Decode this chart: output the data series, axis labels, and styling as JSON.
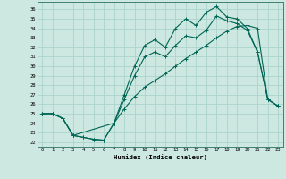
{
  "xlabel": "Humidex (Indice chaleur)",
  "bg_color": "#cce8e0",
  "grid_color": "#aad4cc",
  "line_color": "#006655",
  "xlim": [
    -0.5,
    23.5
  ],
  "ylim": [
    21.5,
    36.8
  ],
  "yticks": [
    22,
    23,
    24,
    25,
    26,
    27,
    28,
    29,
    30,
    31,
    32,
    33,
    34,
    35,
    36
  ],
  "xticks": [
    0,
    1,
    2,
    3,
    4,
    5,
    6,
    7,
    8,
    9,
    10,
    11,
    12,
    13,
    14,
    15,
    16,
    17,
    18,
    19,
    20,
    21,
    22,
    23
  ],
  "line1_x": [
    0,
    1,
    2,
    3,
    4,
    5,
    6,
    7,
    8,
    9,
    10,
    11,
    12,
    13,
    14,
    15,
    16,
    17,
    18,
    19,
    20,
    21,
    22,
    23
  ],
  "line1_y": [
    25.0,
    25.0,
    24.5,
    22.7,
    22.5,
    22.3,
    22.2,
    24.0,
    27.0,
    30.0,
    32.2,
    32.8,
    32.0,
    34.0,
    35.0,
    34.3,
    35.7,
    36.3,
    35.2,
    35.0,
    34.0,
    31.5,
    26.5,
    25.8
  ],
  "line2_x": [
    0,
    1,
    2,
    3,
    4,
    5,
    6,
    7,
    8,
    9,
    10,
    11,
    12,
    13,
    14,
    15,
    16,
    17,
    18,
    19,
    20,
    21,
    22,
    23
  ],
  "line2_y": [
    25.0,
    25.0,
    24.5,
    22.7,
    22.5,
    22.3,
    22.2,
    24.0,
    25.5,
    26.8,
    27.8,
    28.5,
    29.2,
    30.0,
    30.8,
    31.5,
    32.2,
    33.0,
    33.7,
    34.2,
    34.3,
    34.0,
    26.5,
    25.8
  ],
  "line3_x": [
    0,
    1,
    2,
    3,
    7,
    8,
    9,
    10,
    11,
    12,
    13,
    14,
    15,
    16,
    17,
    18,
    19,
    20,
    21,
    22,
    23
  ],
  "line3_y": [
    25.0,
    25.0,
    24.5,
    22.7,
    24.0,
    26.5,
    29.0,
    31.0,
    31.5,
    31.0,
    32.2,
    33.2,
    33.0,
    33.8,
    35.3,
    34.8,
    34.5,
    33.8,
    31.5,
    26.5,
    25.8
  ]
}
